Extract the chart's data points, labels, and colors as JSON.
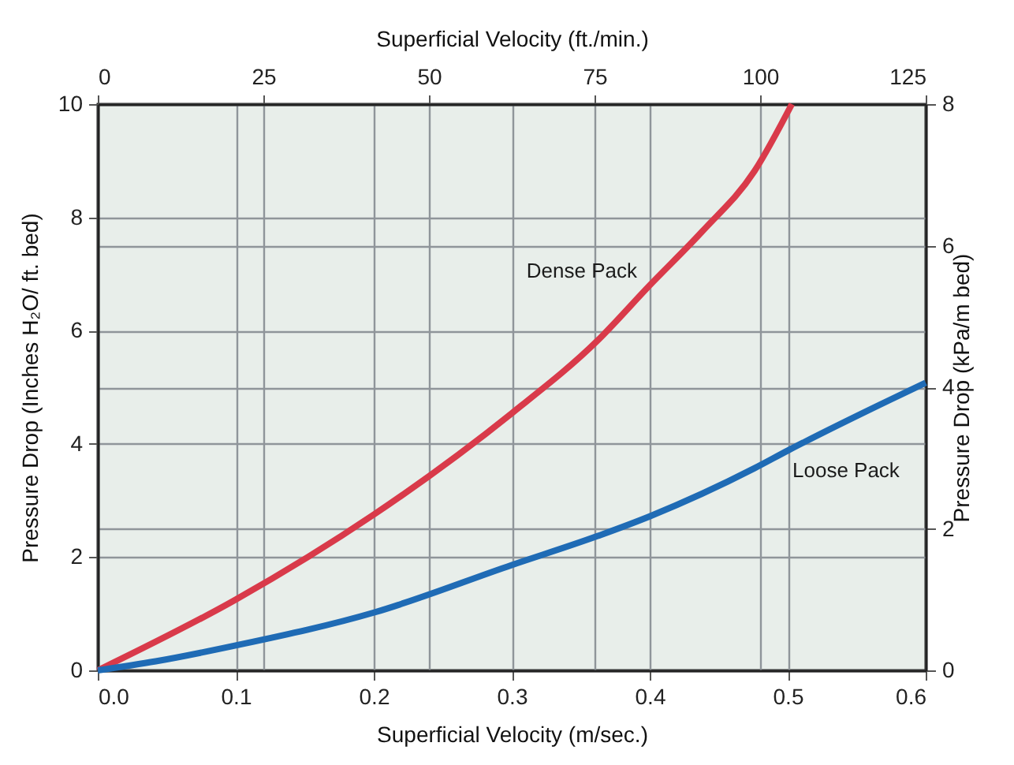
{
  "chart_data": {
    "type": "line",
    "xlabel": "Superficial Velocity (m/sec.)",
    "ylabel": "Pressure Drop (Inches H₂O/ ft. bed)",
    "x2label": "Superficial Velocity (ft./min.)",
    "y2label": "Pressure Drop (kPa/m bed)",
    "xlim": [
      0,
      0.6
    ],
    "xticks": [
      {
        "value": 0,
        "label": "0.0"
      },
      0.1,
      0.2,
      0.3,
      0.4,
      0.5,
      0.6
    ],
    "ylim": [
      0,
      10
    ],
    "yticks": [
      0,
      2,
      4,
      6,
      8,
      10
    ],
    "x2lim": [
      0,
      125
    ],
    "x2ticks": [
      0,
      25,
      50,
      75,
      100,
      125
    ],
    "y2lim": [
      0,
      8
    ],
    "y2ticks": [
      0,
      2,
      4,
      6,
      8
    ],
    "grid": true,
    "series": [
      {
        "name": "Dense Pack",
        "color": "#d93a4a",
        "x": [
          0,
          0.1,
          0.2,
          0.3,
          0.362,
          0.4,
          0.438,
          0.476,
          0.503
        ],
        "values": [
          0,
          1.25,
          2.75,
          4.54,
          5.82,
          6.8,
          7.75,
          8.82,
          10
        ]
      },
      {
        "name": "Loose Pack",
        "color": "#1f6bb5",
        "x": [
          0,
          0.042,
          0.1,
          0.2,
          0.3,
          0.362,
          0.4,
          0.476,
          0.5,
          0.6
        ],
        "values": [
          0,
          0.16,
          0.44,
          1.02,
          1.86,
          2.37,
          2.72,
          3.57,
          3.88,
          5.08
        ]
      }
    ]
  }
}
